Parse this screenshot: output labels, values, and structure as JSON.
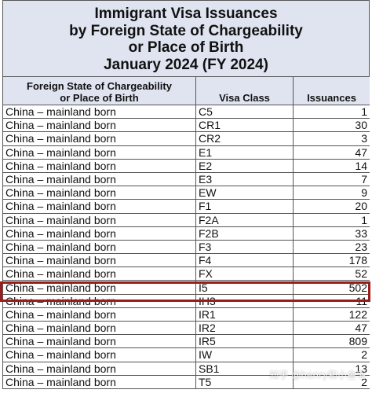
{
  "title": {
    "line1": "Immigrant Visa Issuances",
    "line2": "by Foreign State of Chargeability",
    "line3": "or Place of Birth",
    "line4": "January 2024 (FY 2024)"
  },
  "headers": {
    "state_line1": "Foreign State of Chargeability",
    "state_line2": "or Place of Birth",
    "visa_class": "Visa Class",
    "issuances": "Issuances"
  },
  "rows": [
    {
      "state": "China – mainland born",
      "visa_class": "C5",
      "issuances": "1"
    },
    {
      "state": "China – mainland born",
      "visa_class": "CR1",
      "issuances": "30"
    },
    {
      "state": "China – mainland born",
      "visa_class": "CR2",
      "issuances": "3"
    },
    {
      "state": "China – mainland born",
      "visa_class": "E1",
      "issuances": "47"
    },
    {
      "state": "China – mainland born",
      "visa_class": "E2",
      "issuances": "14"
    },
    {
      "state": "China – mainland born",
      "visa_class": "E3",
      "issuances": "7"
    },
    {
      "state": "China – mainland born",
      "visa_class": "EW",
      "issuances": "9"
    },
    {
      "state": "China – mainland born",
      "visa_class": "F1",
      "issuances": "20"
    },
    {
      "state": "China – mainland born",
      "visa_class": "F2A",
      "issuances": "1"
    },
    {
      "state": "China – mainland born",
      "visa_class": "F2B",
      "issuances": "33"
    },
    {
      "state": "China – mainland born",
      "visa_class": "F3",
      "issuances": "23"
    },
    {
      "state": "China – mainland born",
      "visa_class": "F4",
      "issuances": "178"
    },
    {
      "state": "China – mainland born",
      "visa_class": "FX",
      "issuances": "52"
    },
    {
      "state": "China – mainland born",
      "visa_class": "I5",
      "issuances": "502"
    },
    {
      "state": "China – mainland born",
      "visa_class": "IH3",
      "issuances": "11"
    },
    {
      "state": "China – mainland born",
      "visa_class": "IR1",
      "issuances": "122"
    },
    {
      "state": "China – mainland born",
      "visa_class": "IR2",
      "issuances": "47"
    },
    {
      "state": "China – mainland born",
      "visa_class": "IR5",
      "issuances": "809"
    },
    {
      "state": "China – mainland born",
      "visa_class": "IW",
      "issuances": "2"
    },
    {
      "state": "China – mainland born",
      "visa_class": "SB1",
      "issuances": "13"
    },
    {
      "state": "China – mainland born",
      "visa_class": "T5",
      "issuances": "2"
    }
  ],
  "highlight_color": "#9b1c1c",
  "header_bg": "#dfe4f0",
  "watermark": "知乎 @henry和小金毛"
}
